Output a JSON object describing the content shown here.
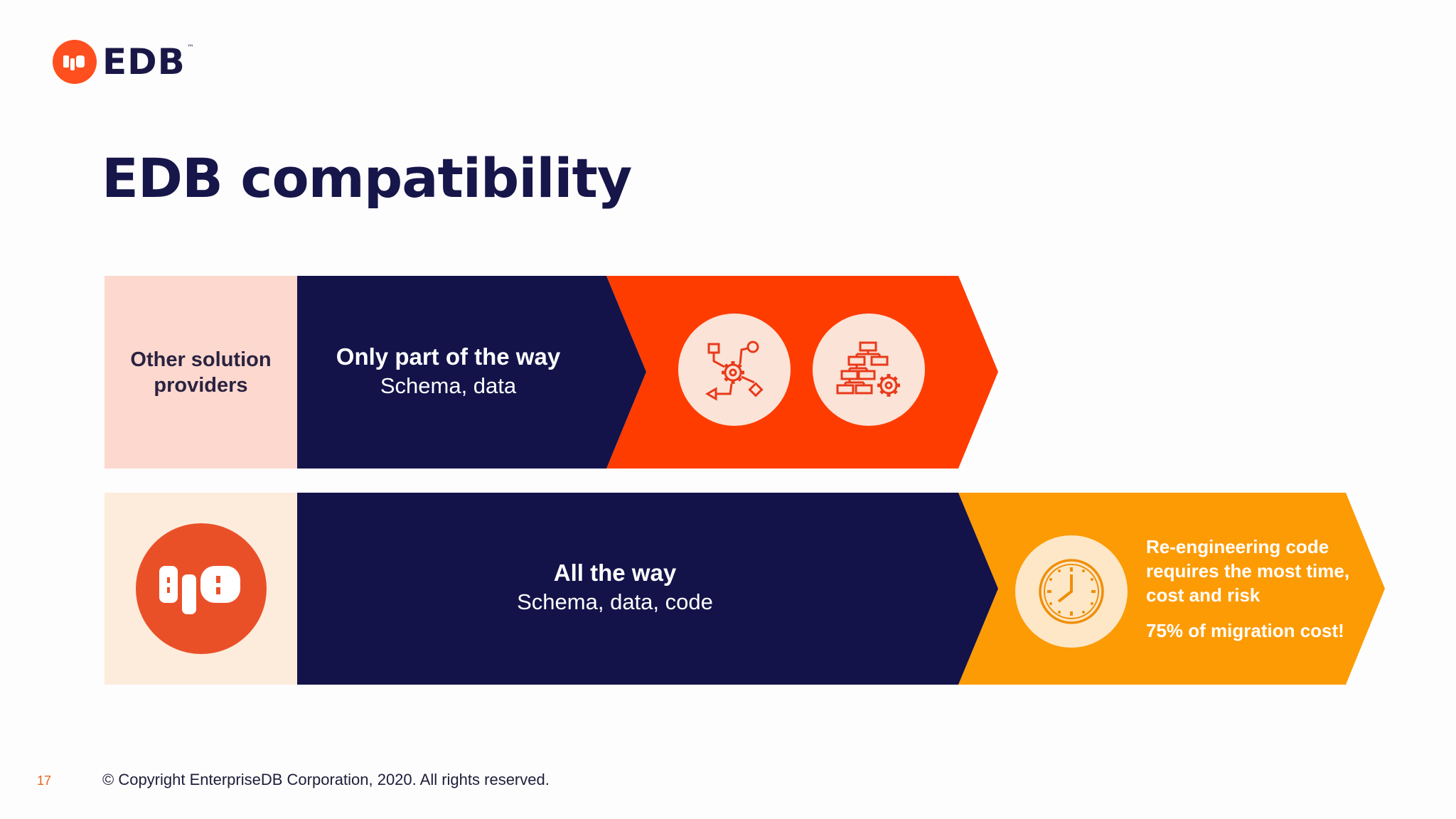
{
  "header": {
    "logo_text": "EDB",
    "logo_tm": "™"
  },
  "slide": {
    "title": "EDB compatibility"
  },
  "rows": {
    "other": {
      "label": "Other solution providers",
      "stage_heading": "Only part of the way",
      "stage_detail": "Schema, data"
    },
    "edb": {
      "stage_heading": "All the way",
      "stage_detail": "Schema, data, code",
      "callout_text": "Re-engineering code requires the most time, cost and risk",
      "callout_stat": "75% of migration cost!"
    }
  },
  "footer": {
    "page_number": "17",
    "copyright": "© Copyright EnterpriseDB Corporation, 2020. All rights reserved."
  },
  "colors": {
    "navy": "#13134a",
    "orange_red": "#ff3c00",
    "amber": "#fd9b05",
    "pale_pink": "#fdd8cf",
    "pale_cream": "#fdecdb",
    "edb_orange": "#ea5028"
  },
  "icons": [
    "workflow-gear-icon",
    "hierarchy-gear-icon",
    "clock-icon",
    "edb-logo-mark"
  ]
}
